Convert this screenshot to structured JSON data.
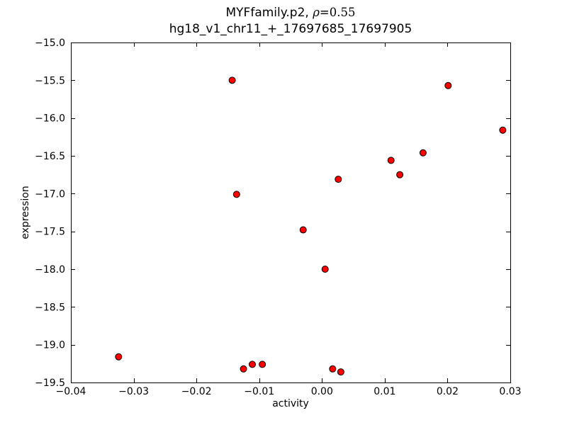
{
  "figure": {
    "title_prefix": "MYFfamily.p2, ",
    "title_rho": "ρ",
    "title_rho_eq": "=0.55",
    "subtitle": "hg18_v1_chr11_+_17697685_17697905",
    "xlabel": "activity",
    "ylabel": "expression"
  },
  "chart_data": {
    "type": "scatter",
    "title": "MYFfamily.p2, ρ=0.55",
    "subtitle": "hg18_v1_chr11_+_17697685_17697905",
    "xlabel": "activity",
    "ylabel": "expression",
    "xlim": [
      -0.04,
      0.03
    ],
    "ylim": [
      -19.5,
      -15.0
    ],
    "x_tick_values": [
      -0.04,
      -0.03,
      -0.02,
      -0.01,
      0.0,
      0.01,
      0.02,
      0.03
    ],
    "x_tick_labels": [
      "−0.04",
      "−0.03",
      "−0.02",
      "−0.01",
      "0.00",
      "0.01",
      "0.02",
      "0.03"
    ],
    "y_tick_values": [
      -15.0,
      -15.5,
      -16.0,
      -16.5,
      -17.0,
      -17.5,
      -18.0,
      -18.5,
      -19.0,
      -19.5
    ],
    "y_tick_labels": [
      "−15.0",
      "−15.5",
      "−16.0",
      "−16.5",
      "−17.0",
      "−17.5",
      "−18.0",
      "−18.5",
      "−19.0",
      "−19.5"
    ],
    "grid": false,
    "legend": null,
    "marker": {
      "shape": "circle",
      "fill_color": "#ff0000",
      "edge_color": "#000000",
      "radius_px": 4.5
    },
    "points": [
      {
        "x": -0.0143,
        "y": -15.5
      },
      {
        "x": 0.0201,
        "y": -15.57
      },
      {
        "x": 0.0288,
        "y": -16.16
      },
      {
        "x": 0.0161,
        "y": -16.46
      },
      {
        "x": 0.011,
        "y": -16.56
      },
      {
        "x": 0.0124,
        "y": -16.75
      },
      {
        "x": 0.0026,
        "y": -16.81
      },
      {
        "x": -0.0136,
        "y": -17.01
      },
      {
        "x": -0.003,
        "y": -17.48
      },
      {
        "x": 0.0005,
        "y": -18.0
      },
      {
        "x": -0.0324,
        "y": -19.16
      },
      {
        "x": -0.0125,
        "y": -19.32
      },
      {
        "x": -0.0111,
        "y": -19.26
      },
      {
        "x": -0.0095,
        "y": -19.26
      },
      {
        "x": 0.0017,
        "y": -19.32
      },
      {
        "x": 0.003,
        "y": -19.36
      }
    ]
  }
}
